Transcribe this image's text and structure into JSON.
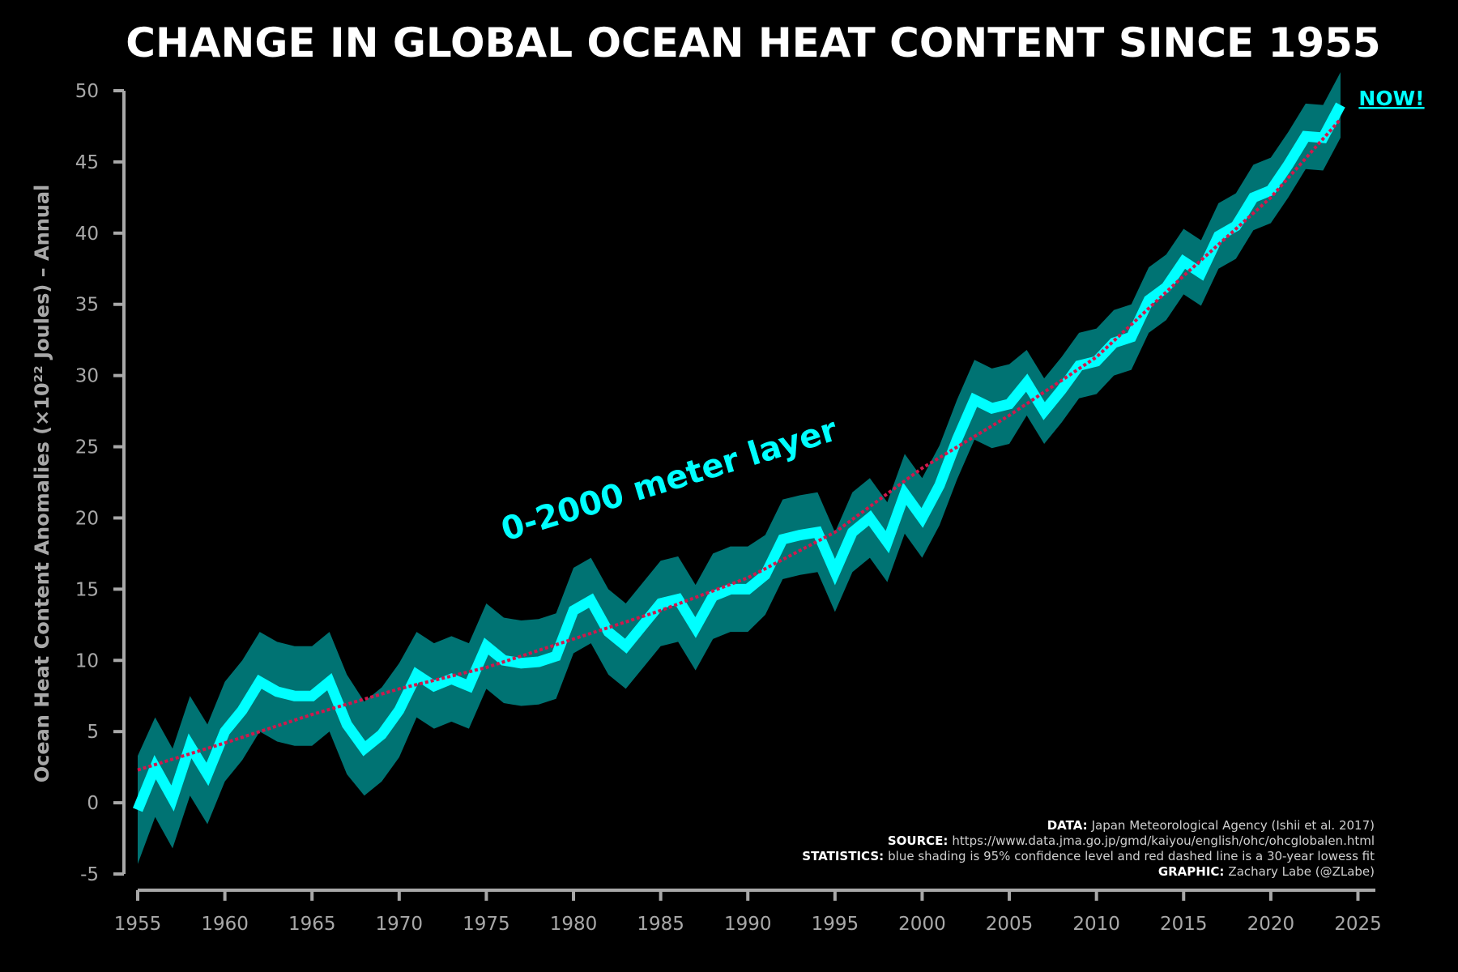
{
  "chart_data": {
    "type": "line",
    "title": "CHANGE IN GLOBAL OCEAN HEAT CONTENT SINCE 1955",
    "y_label": "Ocean Heat Content Anomalies (×10²² Joules) – Annual",
    "x": [
      1955,
      1956,
      1957,
      1958,
      1959,
      1960,
      1961,
      1962,
      1963,
      1964,
      1965,
      1966,
      1967,
      1968,
      1969,
      1970,
      1971,
      1972,
      1973,
      1974,
      1975,
      1976,
      1977,
      1978,
      1979,
      1980,
      1981,
      1982,
      1983,
      1984,
      1985,
      1986,
      1987,
      1988,
      1989,
      1990,
      1991,
      1992,
      1993,
      1994,
      1995,
      1996,
      1997,
      1998,
      1999,
      2000,
      2001,
      2002,
      2003,
      2004,
      2005,
      2006,
      2007,
      2008,
      2009,
      2010,
      2011,
      2012,
      2013,
      2014,
      2015,
      2016,
      2017,
      2018,
      2019,
      2020,
      2021,
      2022,
      2023,
      2024
    ],
    "series": [
      {
        "name": "0-2000 meter layer",
        "color": "#00ffff",
        "band_color": "#007373",
        "values": [
          -0.5,
          2.5,
          0.3,
          4.0,
          2.0,
          5.0,
          6.5,
          8.5,
          7.8,
          7.5,
          7.5,
          8.5,
          5.5,
          3.8,
          4.8,
          6.5,
          9.0,
          8.2,
          8.7,
          8.2,
          11.0,
          10.0,
          9.8,
          9.9,
          10.3,
          13.5,
          14.2,
          12.0,
          11.0,
          12.5,
          14.0,
          14.3,
          12.3,
          14.5,
          15.0,
          15.0,
          16.0,
          18.5,
          18.8,
          19.0,
          16.2,
          19.0,
          20.0,
          18.3,
          21.7,
          20.0,
          22.3,
          25.5,
          28.3,
          27.7,
          28.0,
          29.5,
          27.5,
          29.0,
          30.7,
          31.0,
          32.3,
          32.7,
          35.3,
          36.2,
          38.0,
          37.2,
          39.8,
          40.5,
          42.5,
          43.0,
          44.8,
          46.8,
          46.7,
          49.0
        ],
        "errors": [
          3.8,
          3.5,
          3.5,
          3.5,
          3.5,
          3.5,
          3.5,
          3.5,
          3.5,
          3.5,
          3.5,
          3.5,
          3.5,
          3.3,
          3.3,
          3.3,
          3.0,
          3.0,
          3.0,
          3.0,
          3.0,
          3.0,
          3.0,
          3.0,
          3.0,
          3.0,
          3.0,
          3.0,
          3.0,
          3.0,
          3.0,
          3.0,
          3.0,
          3.0,
          3.0,
          3.0,
          2.8,
          2.8,
          2.8,
          2.8,
          2.8,
          2.8,
          2.8,
          2.8,
          2.8,
          2.8,
          2.8,
          2.8,
          2.8,
          2.8,
          2.8,
          2.3,
          2.3,
          2.3,
          2.3,
          2.3,
          2.3,
          2.3,
          2.3,
          2.3,
          2.3,
          2.3,
          2.3,
          2.3,
          2.3,
          2.3,
          2.3,
          2.3,
          2.3,
          2.3
        ]
      },
      {
        "type": "trend",
        "color": "#d0184c",
        "x": [
          1955,
          1960,
          1965,
          1970,
          1975,
          1980,
          1985,
          1990,
          1995,
          2000,
          2005,
          2010,
          2015,
          2020,
          2024
        ],
        "values": [
          2.3,
          4.2,
          6.2,
          8.0,
          9.5,
          11.5,
          13.5,
          15.8,
          19.0,
          23.5,
          27.2,
          31.3,
          37.0,
          42.5,
          48.0
        ]
      }
    ],
    "xlim": [
      1955,
      2026
    ],
    "xticks": [
      1955,
      1960,
      1965,
      1970,
      1975,
      1980,
      1985,
      1990,
      1995,
      2000,
      2005,
      2010,
      2015,
      2020,
      2025
    ],
    "ylim": [
      -5,
      50
    ],
    "yticks": [
      -5,
      0,
      5,
      10,
      15,
      20,
      25,
      30,
      35,
      40,
      45,
      50
    ],
    "annotation": "NOW!",
    "footnotes": [
      {
        "label": "DATA:",
        "text": "Japan Meteorological Agency (Ishii et al. 2017)"
      },
      {
        "label": "SOURCE:",
        "text": "https://www.data.jma.go.jp/gmd/kaiyou/english/ohc/ohcglobalen.html"
      },
      {
        "label": "STATISTICS:",
        "text": "blue shading is 95% confidence level and red dashed line is a 30-year lowess fit"
      },
      {
        "label": "GRAPHIC:",
        "text": "Zachary Labe (@ZLabe)"
      }
    ]
  }
}
